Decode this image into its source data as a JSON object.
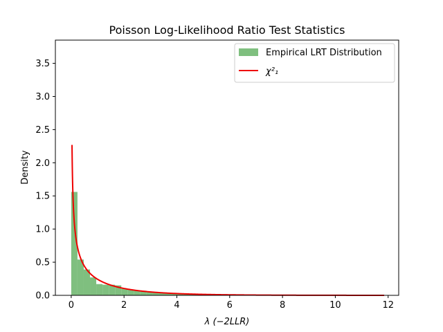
{
  "chart_data": {
    "type": "bar",
    "title": "Poisson Log-Likelihood Ratio Test Statistics",
    "xlabel": "λ (−2LLR)",
    "ylabel": "Density",
    "xlim": [
      -0.6,
      12.4
    ],
    "ylim": [
      0,
      3.85
    ],
    "xticks": [
      0,
      2,
      4,
      6,
      8,
      10,
      12
    ],
    "yticks": [
      0.0,
      0.5,
      1.0,
      1.5,
      2.0,
      2.5,
      3.0,
      3.5
    ],
    "grid": false,
    "legend_position": "top-right",
    "series": [
      {
        "name": "Empirical LRT Distribution",
        "kind": "histogram",
        "color": "#7fbf7f",
        "bin_width": 0.237,
        "bin_starts": [
          0.0,
          0.237,
          0.474,
          0.711,
          0.948,
          1.185,
          1.422,
          1.659,
          1.896,
          2.133,
          2.37,
          2.607,
          2.844,
          3.081,
          3.318,
          3.555,
          3.792,
          4.029,
          4.266,
          4.503,
          4.74,
          4.977,
          5.214,
          5.451,
          5.688,
          5.925,
          6.162,
          6.399,
          6.636,
          6.873,
          7.11,
          7.347,
          7.584,
          7.821,
          8.058,
          8.295,
          8.532,
          8.769,
          9.006,
          9.243,
          9.48,
          9.717,
          9.954,
          10.191,
          10.428,
          10.665,
          10.902,
          11.139,
          11.376,
          11.613
        ],
        "values": [
          1.56,
          0.54,
          0.39,
          0.27,
          0.17,
          0.16,
          0.16,
          0.15,
          0.1,
          0.09,
          0.07,
          0.07,
          0.05,
          0.045,
          0.04,
          0.035,
          0.03,
          0.028,
          0.024,
          0.02,
          0.017,
          0.015,
          0.012,
          0.01,
          0.009,
          0.008,
          0.007,
          0.006,
          0.005,
          0.004,
          0.004,
          0.003,
          0.003,
          0.002,
          0.002,
          0.002,
          0.002,
          0.001,
          0.001,
          0.001,
          0.001,
          0.001,
          0.001,
          0.001,
          0.001,
          0.001,
          0.001,
          0.001,
          0.001,
          0.001
        ]
      },
      {
        "name": "χ²₁",
        "kind": "line",
        "color": "#ee0000",
        "function": "chi2_pdf_df1",
        "x_range": [
          0.03,
          11.85
        ]
      }
    ]
  }
}
